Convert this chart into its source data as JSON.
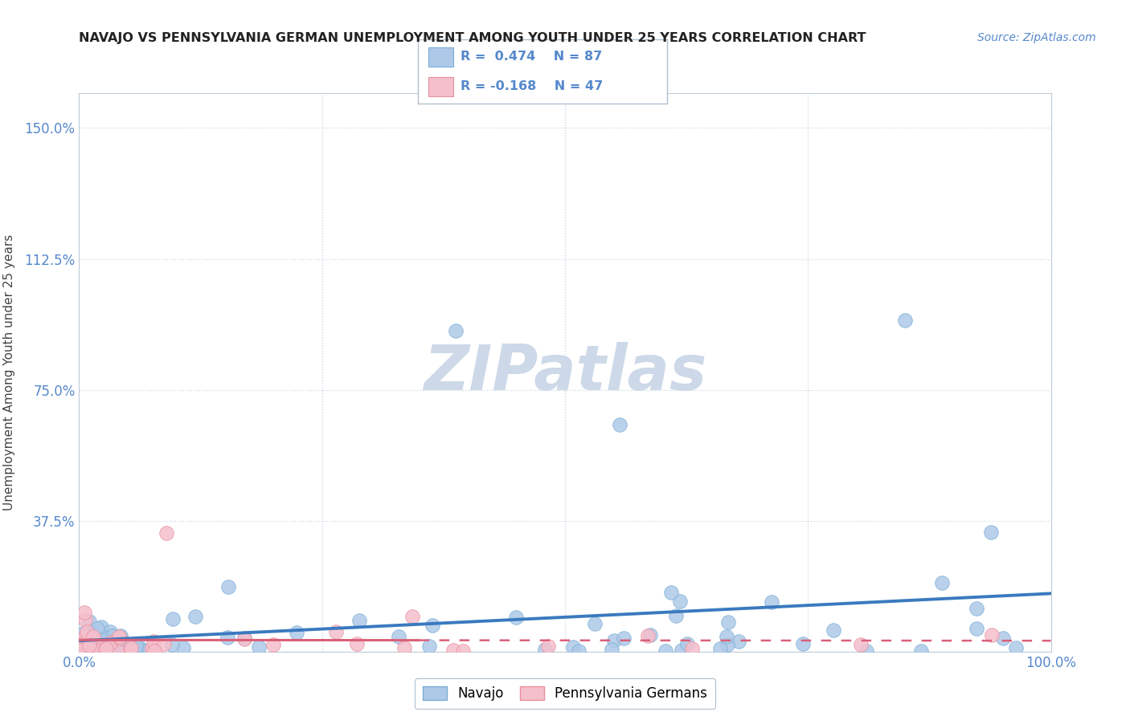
{
  "title": "NAVAJO VS PENNSYLVANIA GERMAN UNEMPLOYMENT AMONG YOUTH UNDER 25 YEARS CORRELATION CHART",
  "source": "Source: ZipAtlas.com",
  "ylabel": "Unemployment Among Youth under 25 years",
  "xlim": [
    0.0,
    1.0
  ],
  "ylim": [
    0.0,
    1.6
  ],
  "xtick_labels": [
    "0.0%",
    "",
    "",
    "",
    "100.0%"
  ],
  "ytick_labels": [
    "",
    "37.5%",
    "75.0%",
    "112.5%",
    "150.0%"
  ],
  "navajo_R": 0.474,
  "navajo_N": 87,
  "penn_R": -0.168,
  "penn_N": 47,
  "navajo_color": "#aec9e8",
  "navajo_edge_color": "#7aaed4",
  "navajo_line_color": "#3a7abf",
  "penn_color": "#f5bfcc",
  "penn_edge_color": "#e8909f",
  "penn_line_color": "#d9607a",
  "background_color": "#ffffff",
  "grid_color": "#c8d4e0",
  "title_color": "#222222",
  "source_color": "#5588cc",
  "tick_color": "#5588cc",
  "ylabel_color": "#444444",
  "watermark_color": "#cdd8e8",
  "legend_border_color": "#b0c0d0"
}
